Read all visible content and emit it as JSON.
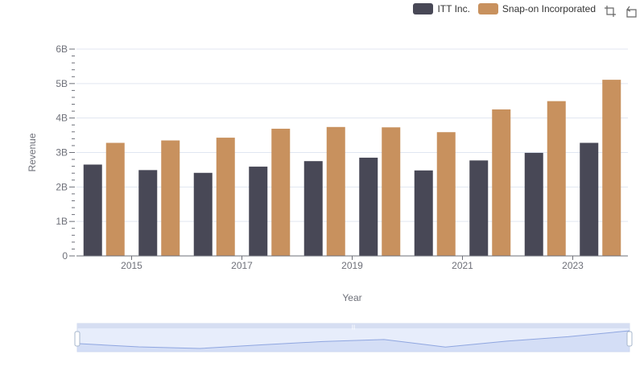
{
  "chart_data": {
    "type": "bar",
    "title": "",
    "xlabel": "Year",
    "ylabel": "Revenue",
    "ylim": [
      0,
      6000000000
    ],
    "yticks": [
      "0",
      "1B",
      "2B",
      "3B",
      "4B",
      "5B",
      "6B"
    ],
    "x_tick_labels": [
      "2015",
      "2017",
      "2019",
      "2021",
      "2023"
    ],
    "categories": [
      "2014",
      "2015",
      "2016",
      "2017",
      "2018",
      "2019",
      "2020",
      "2021",
      "2022",
      "2023"
    ],
    "series": [
      {
        "name": "ITT Inc.",
        "color": "#484856",
        "values": [
          2650000000,
          2490000000,
          2410000000,
          2590000000,
          2750000000,
          2850000000,
          2480000000,
          2770000000,
          2990000000,
          3280000000
        ]
      },
      {
        "name": "Snap-on Incorporated",
        "color": "#c8915e",
        "values": [
          3280000000,
          3350000000,
          3430000000,
          3690000000,
          3740000000,
          3730000000,
          3590000000,
          4250000000,
          4490000000,
          5110000000
        ]
      }
    ],
    "grid": true,
    "legend_position": "top-right"
  },
  "toolbox": {
    "zoom_icon": "zoom-icon",
    "restore_icon": "restore-icon"
  }
}
